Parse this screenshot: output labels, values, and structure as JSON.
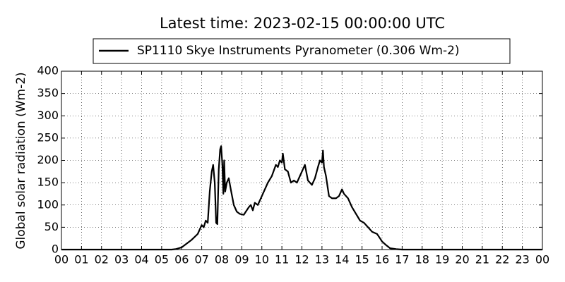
{
  "chart_data": {
    "type": "line",
    "title": "Latest time: 2023-02-15 00:00:00 UTC",
    "y_label": "Global solar radiation (Wm-2)",
    "xlim": [
      0,
      24
    ],
    "ylim": [
      0,
      400
    ],
    "xticks": [
      {
        "value": 0,
        "label": "00"
      },
      {
        "value": 1,
        "label": "01"
      },
      {
        "value": 2,
        "label": "02"
      },
      {
        "value": 3,
        "label": "03"
      },
      {
        "value": 4,
        "label": "04"
      },
      {
        "value": 5,
        "label": "05"
      },
      {
        "value": 6,
        "label": "06"
      },
      {
        "value": 7,
        "label": "07"
      },
      {
        "value": 8,
        "label": "08"
      },
      {
        "value": 9,
        "label": "09"
      },
      10,
      11,
      12,
      13,
      14,
      15,
      16,
      17,
      18,
      19,
      20,
      21,
      22,
      23,
      {
        "value": 24,
        "label": "00"
      }
    ],
    "yticks": [
      0,
      50,
      100,
      150,
      200,
      250,
      300,
      350,
      400
    ],
    "grid": true,
    "legend": "top",
    "x": [
      0,
      5.5,
      5.7,
      6.0,
      6.5,
      6.8,
      7.0,
      7.1,
      7.2,
      7.3,
      7.4,
      7.5,
      7.57,
      7.65,
      7.72,
      7.78,
      7.85,
      7.92,
      7.97,
      8.03,
      8.08,
      8.12,
      8.17,
      8.25,
      8.35,
      8.45,
      8.6,
      8.75,
      8.9,
      9.1,
      9.2,
      9.35,
      9.45,
      9.55,
      9.65,
      9.8,
      9.9,
      10.1,
      10.3,
      10.5,
      10.7,
      10.8,
      10.9,
      11.0,
      11.05,
      11.15,
      11.3,
      11.45,
      11.6,
      11.75,
      11.9,
      12.05,
      12.15,
      12.3,
      12.5,
      12.65,
      12.8,
      12.9,
      13.0,
      13.05,
      13.1,
      13.2,
      13.35,
      13.5,
      13.7,
      13.85,
      14.0,
      14.1,
      14.3,
      14.5,
      14.7,
      14.9,
      15.1,
      15.3,
      15.5,
      15.75,
      15.9,
      16.0,
      16.2,
      16.4,
      16.7,
      17.0,
      24
    ],
    "series": [
      {
        "name": "SP1110 Skye Instruments Pyranometer (0.306 Wm-2)",
        "color": "#000000",
        "values": [
          0,
          0,
          1,
          5,
          22,
          35,
          55,
          50,
          65,
          60,
          130,
          175,
          190,
          150,
          60,
          57,
          180,
          225,
          232,
          190,
          125,
          200,
          130,
          150,
          160,
          135,
          100,
          85,
          80,
          78,
          85,
          95,
          100,
          88,
          105,
          100,
          110,
          130,
          150,
          165,
          190,
          185,
          200,
          195,
          215,
          180,
          175,
          150,
          155,
          150,
          165,
          180,
          190,
          155,
          145,
          160,
          185,
          200,
          195,
          222,
          185,
          165,
          120,
          115,
          115,
          120,
          135,
          125,
          115,
          95,
          80,
          65,
          60,
          50,
          40,
          35,
          25,
          18,
          10,
          3,
          1,
          0,
          0
        ]
      }
    ]
  }
}
